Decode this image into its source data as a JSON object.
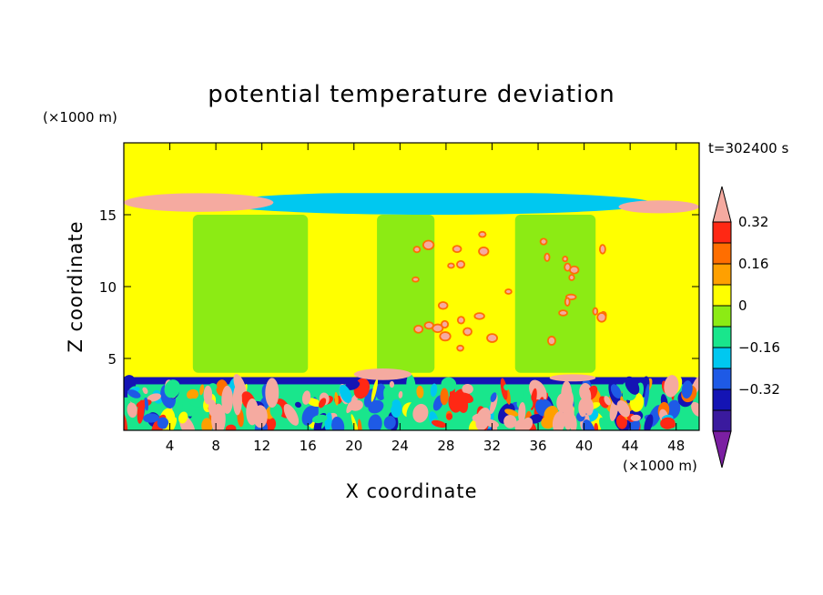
{
  "chart_data": {
    "type": "heatmap",
    "title": "potential temperature deviation",
    "xlabel": "X coordinate",
    "ylabel": "Z coordinate",
    "x_unit": "(×1000 m)",
    "y_unit": "(×1000 m)",
    "time_annotation": "t=302400 s",
    "xlim": [
      0,
      50
    ],
    "ylim": [
      0,
      20
    ],
    "x_ticks": [
      "4",
      "8",
      "12",
      "16",
      "20",
      "24",
      "28",
      "32",
      "36",
      "40",
      "44",
      "48"
    ],
    "y_ticks": [
      "5",
      "10",
      "15"
    ],
    "colorbar": {
      "levels": [
        -0.48,
        -0.4,
        -0.32,
        -0.24,
        -0.16,
        -0.08,
        0,
        0.08,
        0.16,
        0.24,
        0.32,
        0.4,
        0.48
      ],
      "labeled_levels": [
        "0.32",
        "0.16",
        "0",
        "-0.16",
        "-0.32"
      ],
      "display_labels": [
        "0.32",
        "0.16",
        "0",
        "−0.16",
        "−0.32"
      ],
      "colors": [
        "#7b1fa2",
        "#3a1a9e",
        "#1414b4",
        "#1e5ae6",
        "#00c8f0",
        "#19e68c",
        "#8ceb14",
        "#ffff00",
        "#ffa000",
        "#ff6e00",
        "#ff2814",
        "#f5aaa0"
      ]
    },
    "regions": [
      {
        "feature": "background",
        "value": 0.04
      },
      {
        "feature": "warm-vertical-band",
        "x": [
          0,
          6
        ],
        "z": [
          4,
          20
        ],
        "value": 0.04
      },
      {
        "feature": "warm-vertical-band",
        "x": [
          16,
          22
        ],
        "z": [
          5,
          20
        ],
        "value": 0.04
      },
      {
        "feature": "warm-vertical-band",
        "x": [
          27,
          34
        ],
        "z": [
          4,
          11
        ],
        "value": 0.04
      },
      {
        "feature": "warm-vertical-band",
        "x": [
          41,
          46
        ],
        "z": [
          4,
          16
        ],
        "value": 0.04
      },
      {
        "feature": "neutral-core",
        "x": [
          6,
          16
        ],
        "z": [
          4,
          15
        ],
        "value": -0.04
      },
      {
        "feature": "neutral-core",
        "x": [
          22,
          27
        ],
        "z": [
          4,
          15
        ],
        "value": -0.04
      },
      {
        "feature": "neutral-core",
        "x": [
          34,
          41
        ],
        "z": [
          4,
          15
        ],
        "value": -0.04
      },
      {
        "feature": "tropopause-cold-band",
        "x": [
          10,
          46
        ],
        "z": [
          15.2,
          16.2
        ],
        "value": -0.36
      },
      {
        "feature": "tropopause-cool-band",
        "x": [
          8,
          46
        ],
        "z": [
          15,
          16.6
        ],
        "value": -0.2
      },
      {
        "feature": "tropopause-warm-lens",
        "x": [
          0,
          13
        ],
        "z": [
          15.2,
          16.5
        ],
        "value": 0.44
      },
      {
        "feature": "tropopause-warm-lens",
        "x": [
          43,
          50
        ],
        "z": [
          15.1,
          16
        ],
        "value": 0.44
      },
      {
        "feature": "stratosphere-warm-band",
        "x": [
          0,
          50
        ],
        "z": [
          16.5,
          20
        ],
        "value": 0.04
      },
      {
        "feature": "boundary-layer-top-cold",
        "x": [
          0,
          50
        ],
        "z": [
          3.2,
          3.7
        ],
        "value": -0.36
      },
      {
        "feature": "boundary-layer-turbulence",
        "x": [
          0,
          50
        ],
        "z": [
          0,
          3.2
        ],
        "value": 0.2
      },
      {
        "feature": "boundary-layer-warm-plumes",
        "x": [
          7,
          13
        ],
        "z": [
          0.5,
          3
        ],
        "value": 0.4
      },
      {
        "feature": "boundary-layer-warm-plumes",
        "x": [
          38,
          41
        ],
        "z": [
          0.5,
          3
        ],
        "value": 0.4
      },
      {
        "feature": "warm-patch",
        "x": [
          20,
          25
        ],
        "z": [
          3.5,
          4.3
        ],
        "value": 0.44
      },
      {
        "feature": "warm-patch",
        "x": [
          37,
          41
        ],
        "z": [
          3.4,
          3.9
        ],
        "value": 0.44
      },
      {
        "feature": "convective-cells",
        "x": [
          24,
          42
        ],
        "z": [
          5,
          14
        ],
        "value": 0.3
      }
    ]
  }
}
